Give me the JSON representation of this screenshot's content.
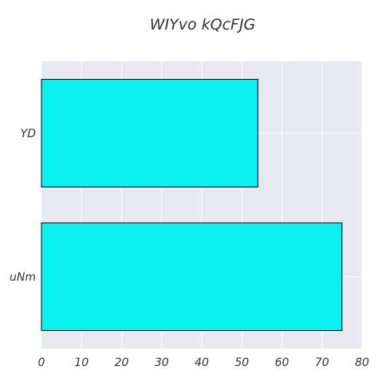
{
  "chart_data": {
    "type": "bar",
    "orientation": "horizontal",
    "title": "WIYvo kQcFJG",
    "xlabel": "",
    "ylabel": "",
    "categories": [
      "YD",
      "uNm"
    ],
    "values": [
      54,
      75
    ],
    "xlim": [
      0,
      80
    ],
    "xticks": [
      0,
      10,
      20,
      30,
      40,
      50,
      60,
      70,
      80
    ],
    "grid": true,
    "colors": {
      "bar": "#08f0f0",
      "bar_edge": "#000000",
      "plot_background": "#e8e8f1",
      "grid": "#ffffff"
    }
  }
}
